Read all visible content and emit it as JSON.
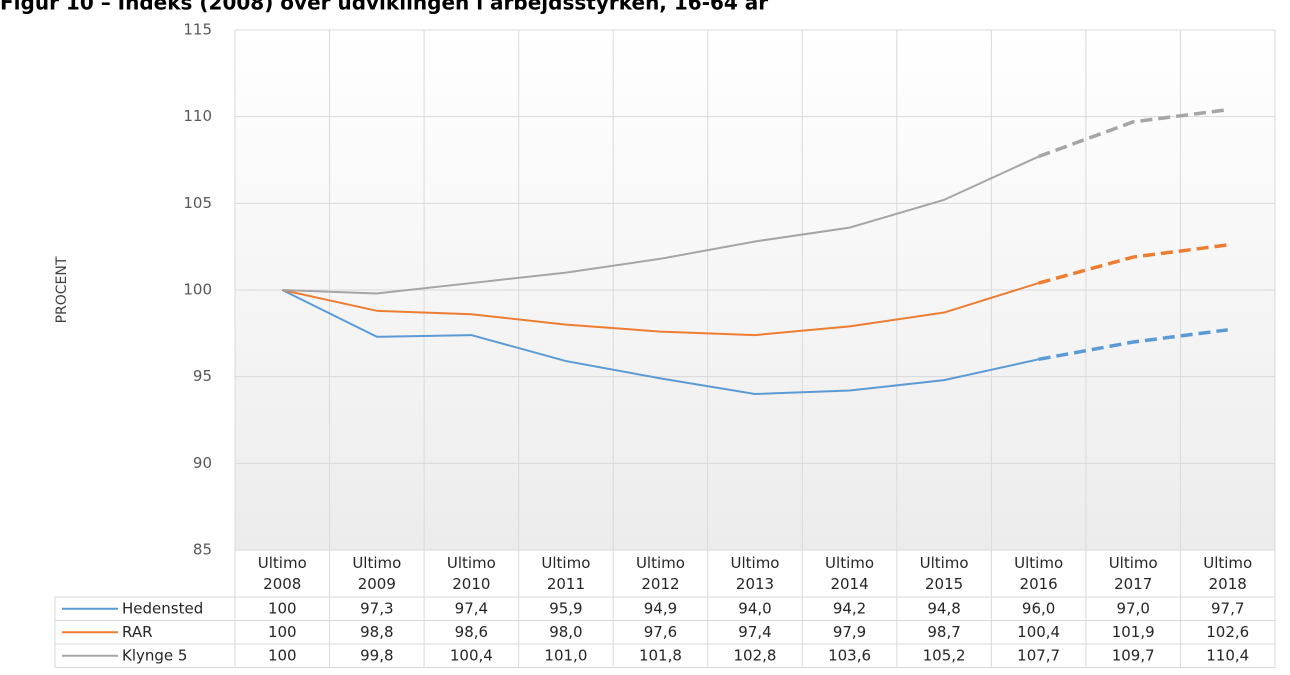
{
  "chart_data": {
    "type": "line",
    "title": "Figur 10 – Indeks (2008) over udviklingen i arbejdsstyrken, 16-64 år",
    "y_label": "PROCENT",
    "categories": [
      "Ultimo 2008",
      "Ultimo 2009",
      "Ultimo 2010",
      "Ultimo 2011",
      "Ultimo 2012",
      "Ultimo 2013",
      "Ultimo 2014",
      "Ultimo 2015",
      "Ultimo 2016",
      "Ultimo 2017",
      "Ultimo 2018"
    ],
    "series": [
      {
        "name": "Hedensted",
        "color": "#5b9bd5",
        "values": [
          100,
          97.3,
          97.4,
          95.9,
          94.9,
          94.0,
          94.2,
          94.8,
          96.0,
          97.0,
          97.7
        ],
        "value_labels": [
          "100",
          "97,3",
          "97,4",
          "95,9",
          "94,9",
          "94,0",
          "94,2",
          "94,8",
          "96,0",
          "97,0",
          "97,7"
        ]
      },
      {
        "name": "RAR",
        "color": "#ed7d31",
        "values": [
          100,
          98.8,
          98.6,
          98.0,
          97.6,
          97.4,
          97.9,
          98.7,
          100.4,
          101.9,
          102.6
        ],
        "value_labels": [
          "100",
          "98,8",
          "98,6",
          "98,0",
          "97,6",
          "97,4",
          "97,9",
          "98,7",
          "100,4",
          "101,9",
          "102,6"
        ]
      },
      {
        "name": "Klynge 5",
        "color": "#a5a5a5",
        "values": [
          100,
          99.8,
          100.4,
          101.0,
          101.8,
          102.8,
          103.6,
          105.2,
          107.7,
          109.7,
          110.4
        ],
        "value_labels": [
          "100",
          "99,8",
          "100,4",
          "101,0",
          "101,8",
          "102,8",
          "103,6",
          "105,2",
          "107,7",
          "109,7",
          "110,4"
        ]
      }
    ],
    "ylim": [
      85,
      115
    ],
    "yticks": [
      85,
      90,
      95,
      100,
      105,
      110,
      115
    ],
    "grid": true
  }
}
